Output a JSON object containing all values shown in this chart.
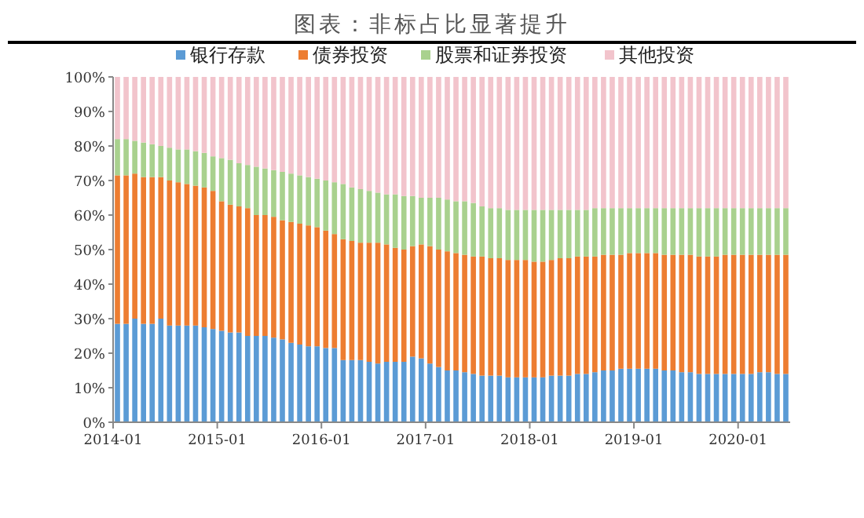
{
  "chart_data": {
    "type": "bar",
    "stacked": true,
    "title": "图表：非标占比显著提升",
    "legend": "top",
    "categories": [
      "2014-01",
      null,
      null,
      null,
      null,
      null,
      null,
      null,
      null,
      null,
      null,
      null,
      "2015-01",
      null,
      null,
      null,
      null,
      null,
      null,
      null,
      null,
      null,
      null,
      null,
      "2016-01",
      null,
      null,
      null,
      null,
      null,
      null,
      null,
      null,
      null,
      null,
      null,
      "2017-01",
      null,
      null,
      null,
      null,
      null,
      null,
      null,
      null,
      null,
      null,
      null,
      "2018-01",
      null,
      null,
      null,
      null,
      null,
      null,
      null,
      null,
      null,
      null,
      null,
      "2019-01",
      null,
      null,
      null,
      null,
      null,
      null,
      null,
      null,
      null,
      null,
      null,
      "2020-01",
      null,
      null,
      null,
      null,
      null
    ],
    "ylim": [
      0,
      100
    ],
    "yticks": [
      {
        "value": 0,
        "label": "0%"
      },
      {
        "value": 10,
        "label": "10%"
      },
      {
        "value": 20,
        "label": "20%"
      },
      {
        "value": 30,
        "label": "30%"
      },
      {
        "value": 40,
        "label": "40%"
      },
      {
        "value": 50,
        "label": "50%"
      },
      {
        "value": 60,
        "label": "60%"
      },
      {
        "value": 70,
        "label": "70%"
      },
      {
        "value": 80,
        "label": "80%"
      },
      {
        "value": 90,
        "label": "90%"
      },
      {
        "value": 100,
        "label": "100%"
      }
    ],
    "series": [
      {
        "name": "银行存款",
        "color": "#5b9bd5",
        "values": [
          28.5,
          28.5,
          30,
          28.5,
          28.5,
          30,
          28,
          28,
          28,
          28,
          27.5,
          27,
          26.5,
          26,
          26,
          25,
          25,
          25,
          24.5,
          24,
          23,
          22.5,
          22,
          22,
          21.5,
          21.5,
          18,
          18,
          18,
          17.5,
          17,
          17.5,
          17.5,
          17.5,
          19,
          18.5,
          17,
          16,
          15,
          15,
          14.5,
          14,
          13.5,
          13.5,
          13.5,
          13,
          13,
          13,
          13,
          13,
          13.5,
          13.5,
          13.5,
          14,
          14,
          14.5,
          15,
          15,
          15.5,
          15.5,
          15.5,
          15.5,
          15.5,
          15,
          15,
          14.5,
          14.5,
          14,
          14,
          14,
          14,
          14,
          14,
          14,
          14.5,
          14.5,
          14,
          14
        ]
      },
      {
        "name": "债券投资",
        "color": "#ed7d31",
        "values": [
          43,
          43,
          42,
          42.5,
          42.5,
          41,
          42,
          41.5,
          41,
          40.5,
          40.5,
          40,
          37.5,
          37,
          36.5,
          37,
          35,
          35,
          35,
          34.5,
          35,
          35,
          35,
          34.5,
          34,
          33,
          35,
          34.5,
          34,
          34.5,
          35,
          34,
          33,
          32.5,
          32,
          33,
          34,
          34,
          34.5,
          34,
          34,
          34,
          34.5,
          34,
          34,
          34,
          34,
          34,
          33.5,
          33.5,
          33.5,
          34,
          34,
          34,
          34,
          33.5,
          33.5,
          33.5,
          33,
          33.5,
          33.5,
          33.5,
          33.5,
          33.5,
          33.5,
          34,
          34,
          34,
          34,
          34,
          34.5,
          34.5,
          34.5,
          34.5,
          34,
          34,
          34.5,
          34.5
        ]
      },
      {
        "name": "股票和证券投资",
        "color": "#a9d18e",
        "values": [
          10.5,
          10.5,
          9.5,
          10,
          9.5,
          9,
          9.5,
          9.5,
          10,
          10,
          10,
          10,
          12.5,
          13,
          12.5,
          12.5,
          14,
          13.5,
          13.5,
          14,
          14,
          14,
          14,
          14,
          14.5,
          15,
          16,
          15.5,
          15.5,
          15,
          14.5,
          14.5,
          15.5,
          15.5,
          14.5,
          13.5,
          14,
          15,
          15,
          15,
          15.5,
          15.5,
          14.5,
          14.5,
          14.5,
          14.5,
          14.5,
          14.5,
          15,
          15,
          14.5,
          14,
          14,
          13.5,
          13.5,
          14,
          13.5,
          13.5,
          13.5,
          13,
          13,
          13,
          13,
          13.5,
          13.5,
          13.5,
          13.5,
          14,
          14,
          14,
          13.5,
          13.5,
          13.5,
          13.5,
          13.5,
          13.5,
          13.5,
          13.5
        ]
      },
      {
        "name": "其他投资",
        "color": "#f2c4cc",
        "values": [
          18,
          18,
          18.5,
          19,
          19.5,
          20,
          20.5,
          21,
          21,
          21.5,
          22,
          23,
          23.5,
          24,
          25,
          25.5,
          26,
          26.5,
          27,
          27.5,
          28,
          28.5,
          29,
          29.5,
          30,
          30.5,
          31,
          32,
          32.5,
          33,
          33.5,
          34,
          34,
          34.5,
          34.5,
          35,
          35,
          35,
          35.5,
          36,
          36,
          36.5,
          37.5,
          38,
          38,
          38.5,
          38.5,
          38.5,
          38.5,
          38.5,
          38.5,
          38.5,
          38.5,
          38.5,
          38.5,
          38,
          38,
          38,
          38,
          38,
          38,
          38,
          38,
          38,
          38,
          38,
          38,
          38,
          38,
          38,
          38,
          38,
          38,
          38,
          38,
          38,
          38,
          38
        ]
      }
    ]
  }
}
